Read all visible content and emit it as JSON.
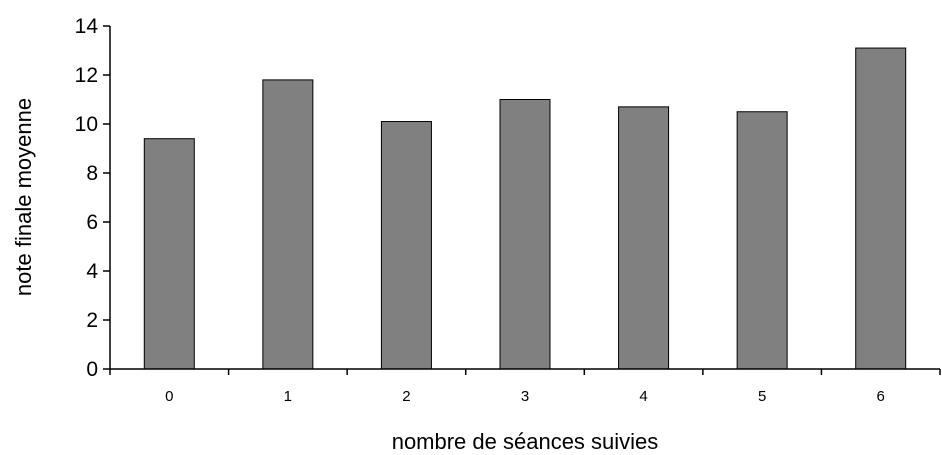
{
  "chart_data": {
    "type": "bar",
    "categories": [
      "0",
      "1",
      "2",
      "3",
      "4",
      "5",
      "6"
    ],
    "values": [
      9.4,
      11.8,
      10.1,
      11.0,
      10.7,
      10.5,
      13.1
    ],
    "xlabel": "nombre de séances suivies",
    "ylabel": "note finale moyenne",
    "ylim": [
      0,
      14
    ],
    "yticks": [
      0,
      2,
      4,
      6,
      8,
      10,
      12,
      14
    ],
    "grid": false,
    "legend": "none",
    "bar_color": "#808080",
    "bar_edge_color": "#000000"
  }
}
